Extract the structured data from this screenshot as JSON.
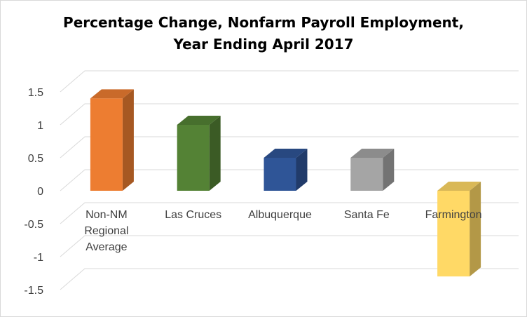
{
  "chart_data": {
    "type": "bar",
    "title_lines": [
      "Percentage Change, Nonfarm Payroll Employment,",
      "Year Ending  April 2017"
    ],
    "xlabel": "",
    "ylabel": "",
    "categories": [
      "Non-NM Regional Average",
      "Las Cruces",
      "Albuquerque",
      "Santa Fe",
      "Farmington"
    ],
    "category_label_lines": [
      [
        "Non-NM",
        "Regional",
        "Average"
      ],
      [
        "Las Cruces"
      ],
      [
        "Albuquerque"
      ],
      [
        "Santa Fe"
      ],
      [
        "Farmington"
      ]
    ],
    "values": [
      1.4,
      1.0,
      0.5,
      0.5,
      -1.3
    ],
    "colors": [
      "#ED7D31",
      "#548235",
      "#2F5597",
      "#A5A5A5",
      "#FFD966"
    ],
    "ylim": [
      -1.5,
      1.5
    ],
    "yticks": [
      1.5,
      1,
      0.5,
      0,
      -0.5,
      -1,
      -1.5
    ],
    "ytick_labels": [
      "1.5",
      "1",
      "0.5",
      "0",
      "-0.5",
      "-1",
      "-1.5"
    ],
    "grid": true,
    "style": "3d-column",
    "legend": "none"
  }
}
